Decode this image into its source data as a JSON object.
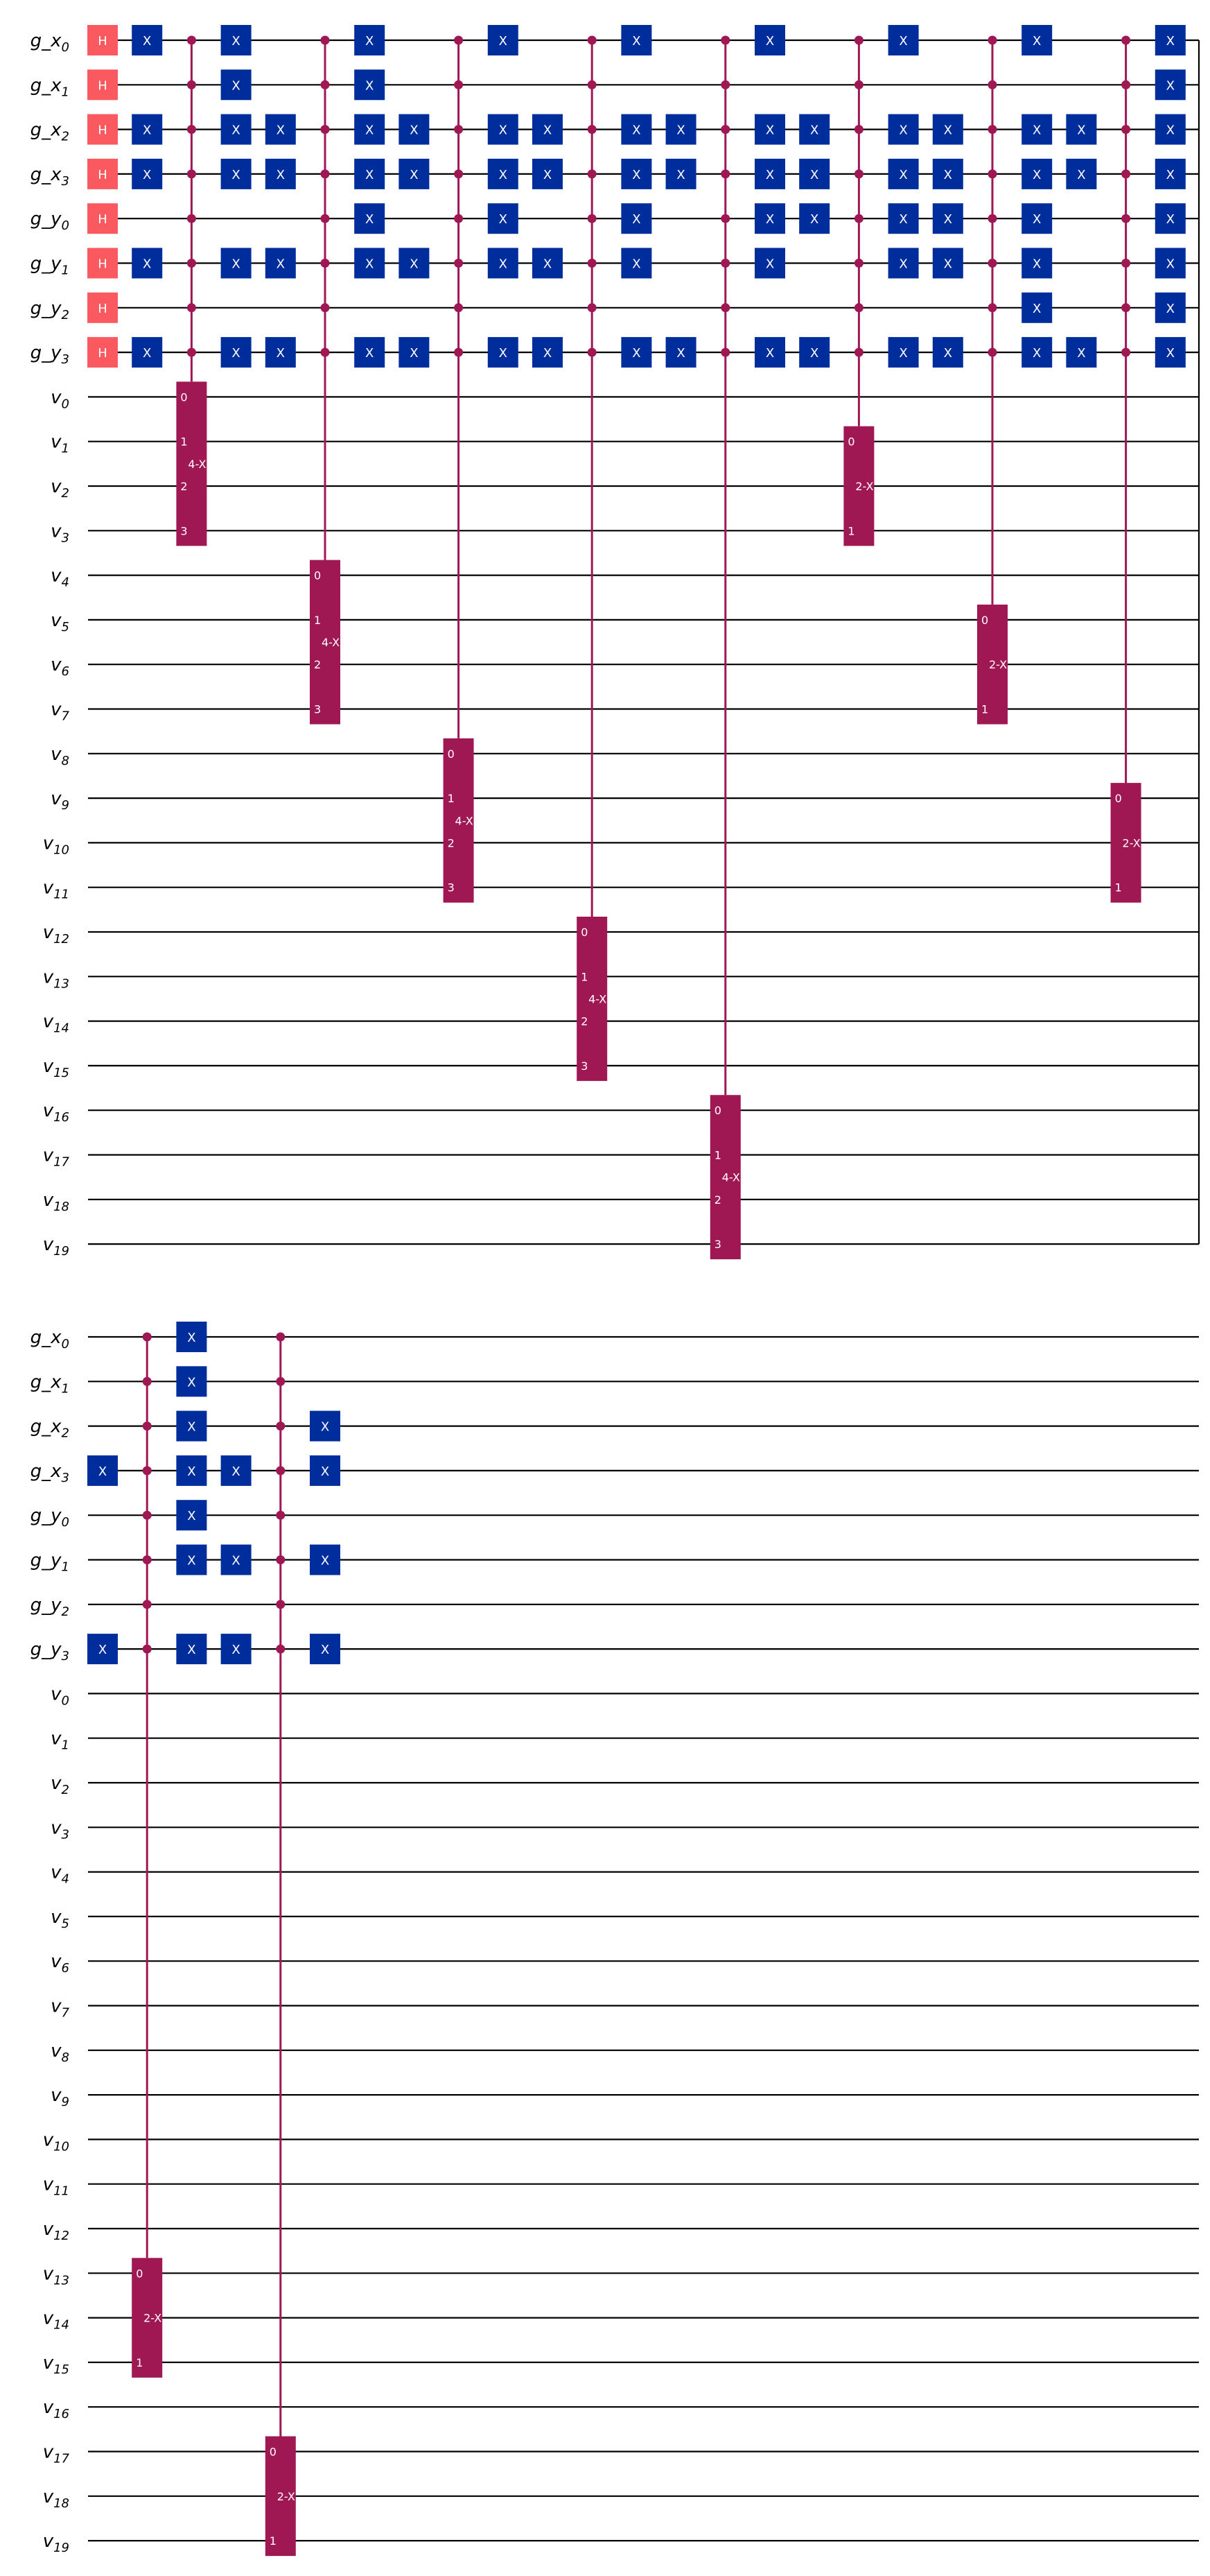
{
  "diagram": {
    "type": "quantum-circuit",
    "colors": {
      "wire": "#000000",
      "h_gate": "#FA5A5F",
      "x_gate": "#002D9C",
      "mcx": "#9F1853",
      "label_text": "#FFFFFF",
      "background": "#FFFFFF"
    },
    "gate_labels": {
      "h": "H",
      "x": "X",
      "mcx4": "4-X",
      "mcx2": "2-X"
    },
    "qubits": [
      {
        "base": "g_x",
        "sub": "0"
      },
      {
        "base": "g_x",
        "sub": "1"
      },
      {
        "base": "g_x",
        "sub": "2"
      },
      {
        "base": "g_x",
        "sub": "3"
      },
      {
        "base": "g_y",
        "sub": "0"
      },
      {
        "base": "g_y",
        "sub": "1"
      },
      {
        "base": "g_y",
        "sub": "2"
      },
      {
        "base": "g_y",
        "sub": "3"
      },
      {
        "base": "v",
        "sub": "0"
      },
      {
        "base": "v",
        "sub": "1"
      },
      {
        "base": "v",
        "sub": "2"
      },
      {
        "base": "v",
        "sub": "3"
      },
      {
        "base": "v",
        "sub": "4"
      },
      {
        "base": "v",
        "sub": "5"
      },
      {
        "base": "v",
        "sub": "6"
      },
      {
        "base": "v",
        "sub": "7"
      },
      {
        "base": "v",
        "sub": "8"
      },
      {
        "base": "v",
        "sub": "9"
      },
      {
        "base": "v",
        "sub": "10"
      },
      {
        "base": "v",
        "sub": "11"
      },
      {
        "base": "v",
        "sub": "12"
      },
      {
        "base": "v",
        "sub": "13"
      },
      {
        "base": "v",
        "sub": "14"
      },
      {
        "base": "v",
        "sub": "15"
      },
      {
        "base": "v",
        "sub": "16"
      },
      {
        "base": "v",
        "sub": "17"
      },
      {
        "base": "v",
        "sub": "18"
      },
      {
        "base": "v",
        "sub": "19"
      }
    ],
    "sections": [
      {
        "columns": [
          {
            "gates": [
              {
                "t": "h",
                "q": [
                  0,
                  1,
                  2,
                  3,
                  4,
                  5,
                  6,
                  7
                ]
              }
            ]
          },
          {
            "gates": [
              {
                "t": "x",
                "q": [
                  0,
                  2,
                  3,
                  5,
                  7
                ]
              }
            ]
          },
          {
            "gates": [
              {
                "t": "mcx",
                "label": "4-X",
                "controls": [
                  0,
                  1,
                  2,
                  3,
                  4,
                  5,
                  6,
                  7
                ],
                "targets": [
                  8,
                  9,
                  10,
                  11
                ]
              }
            ]
          },
          {
            "gates": [
              {
                "t": "x",
                "q": [
                  0,
                  1,
                  2,
                  3,
                  5,
                  7
                ]
              }
            ]
          },
          {
            "gates": [
              {
                "t": "x",
                "q": [
                  2,
                  3,
                  5,
                  7
                ]
              }
            ]
          },
          {
            "gates": [
              {
                "t": "mcx",
                "label": "4-X",
                "controls": [
                  0,
                  1,
                  2,
                  3,
                  4,
                  5,
                  6,
                  7
                ],
                "targets": [
                  12,
                  13,
                  14,
                  15
                ]
              }
            ]
          },
          {
            "gates": [
              {
                "t": "x",
                "q": [
                  0,
                  1,
                  2,
                  3,
                  4,
                  5,
                  7
                ]
              }
            ]
          },
          {
            "gates": [
              {
                "t": "x",
                "q": [
                  2,
                  3,
                  5,
                  7
                ]
              }
            ]
          },
          {
            "gates": [
              {
                "t": "mcx",
                "label": "4-X",
                "controls": [
                  0,
                  1,
                  2,
                  3,
                  4,
                  5,
                  6,
                  7
                ],
                "targets": [
                  16,
                  17,
                  18,
                  19
                ]
              }
            ]
          },
          {
            "gates": [
              {
                "t": "x",
                "q": [
                  0,
                  2,
                  3,
                  4,
                  5,
                  7
                ]
              }
            ]
          },
          {
            "gates": [
              {
                "t": "x",
                "q": [
                  2,
                  3,
                  5,
                  7
                ]
              }
            ]
          },
          {
            "gates": [
              {
                "t": "mcx",
                "label": "4-X",
                "controls": [
                  0,
                  1,
                  2,
                  3,
                  4,
                  5,
                  6,
                  7
                ],
                "targets": [
                  20,
                  21,
                  22,
                  23
                ]
              }
            ]
          },
          {
            "gates": [
              {
                "t": "x",
                "q": [
                  0,
                  2,
                  3,
                  4,
                  5,
                  7
                ]
              }
            ]
          },
          {
            "gates": [
              {
                "t": "x",
                "q": [
                  2,
                  3,
                  7
                ]
              }
            ]
          },
          {
            "gates": [
              {
                "t": "mcx",
                "label": "4-X",
                "controls": [
                  0,
                  1,
                  2,
                  3,
                  4,
                  5,
                  6,
                  7
                ],
                "targets": [
                  24,
                  25,
                  26,
                  27
                ]
              }
            ]
          },
          {
            "gates": [
              {
                "t": "x",
                "q": [
                  0,
                  2,
                  3,
                  4,
                  5,
                  7
                ]
              }
            ]
          },
          {
            "gates": [
              {
                "t": "x",
                "q": [
                  2,
                  3,
                  4,
                  7
                ]
              }
            ]
          },
          {
            "gates": [
              {
                "t": "mcx",
                "label": "2-X",
                "controls": [
                  0,
                  1,
                  2,
                  3,
                  4,
                  5,
                  6,
                  7
                ],
                "targets": [
                  9,
                  10,
                  11
                ]
              }
            ]
          },
          {
            "gates": [
              {
                "t": "x",
                "q": [
                  0,
                  2,
                  3,
                  4,
                  5,
                  7
                ]
              }
            ]
          },
          {
            "gates": [
              {
                "t": "x",
                "q": [
                  2,
                  3,
                  4,
                  5,
                  7
                ]
              }
            ]
          },
          {
            "gates": [
              {
                "t": "mcx",
                "label": "2-X",
                "controls": [
                  0,
                  1,
                  2,
                  3,
                  4,
                  5,
                  6,
                  7
                ],
                "targets": [
                  13,
                  14,
                  15
                ]
              }
            ]
          },
          {
            "gates": [
              {
                "t": "x",
                "q": [
                  0,
                  2,
                  3,
                  4,
                  5,
                  6,
                  7
                ]
              }
            ]
          },
          {
            "gates": [
              {
                "t": "x",
                "q": [
                  2,
                  3,
                  7
                ]
              }
            ]
          },
          {
            "gates": [
              {
                "t": "mcx",
                "label": "2-X",
                "controls": [
                  0,
                  1,
                  2,
                  3,
                  4,
                  5,
                  6,
                  7
                ],
                "targets": [
                  17,
                  18,
                  19
                ]
              }
            ]
          },
          {
            "gates": [
              {
                "t": "x",
                "q": [
                  0,
                  1,
                  2,
                  3,
                  4,
                  5,
                  6,
                  7
                ]
              }
            ]
          }
        ]
      },
      {
        "columns": [
          {
            "gates": [
              {
                "t": "x",
                "q": [
                  3,
                  7
                ]
              }
            ]
          },
          {
            "gates": [
              {
                "t": "mcx",
                "label": "2-X",
                "controls": [
                  0,
                  1,
                  2,
                  3,
                  4,
                  5,
                  6,
                  7
                ],
                "targets": [
                  21,
                  22,
                  23
                ]
              }
            ]
          },
          {
            "gates": [
              {
                "t": "x",
                "q": [
                  0,
                  1,
                  2,
                  3,
                  4,
                  5,
                  7
                ]
              }
            ]
          },
          {
            "gates": [
              {
                "t": "x",
                "q": [
                  3,
                  5,
                  7
                ]
              }
            ]
          },
          {
            "gates": [
              {
                "t": "mcx",
                "label": "2-X",
                "controls": [
                  0,
                  1,
                  2,
                  3,
                  4,
                  5,
                  6,
                  7
                ],
                "targets": [
                  25,
                  26,
                  27
                ]
              }
            ]
          },
          {
            "gates": [
              {
                "t": "x",
                "q": [
                  2,
                  3,
                  5,
                  7
                ]
              }
            ]
          }
        ]
      }
    ]
  }
}
